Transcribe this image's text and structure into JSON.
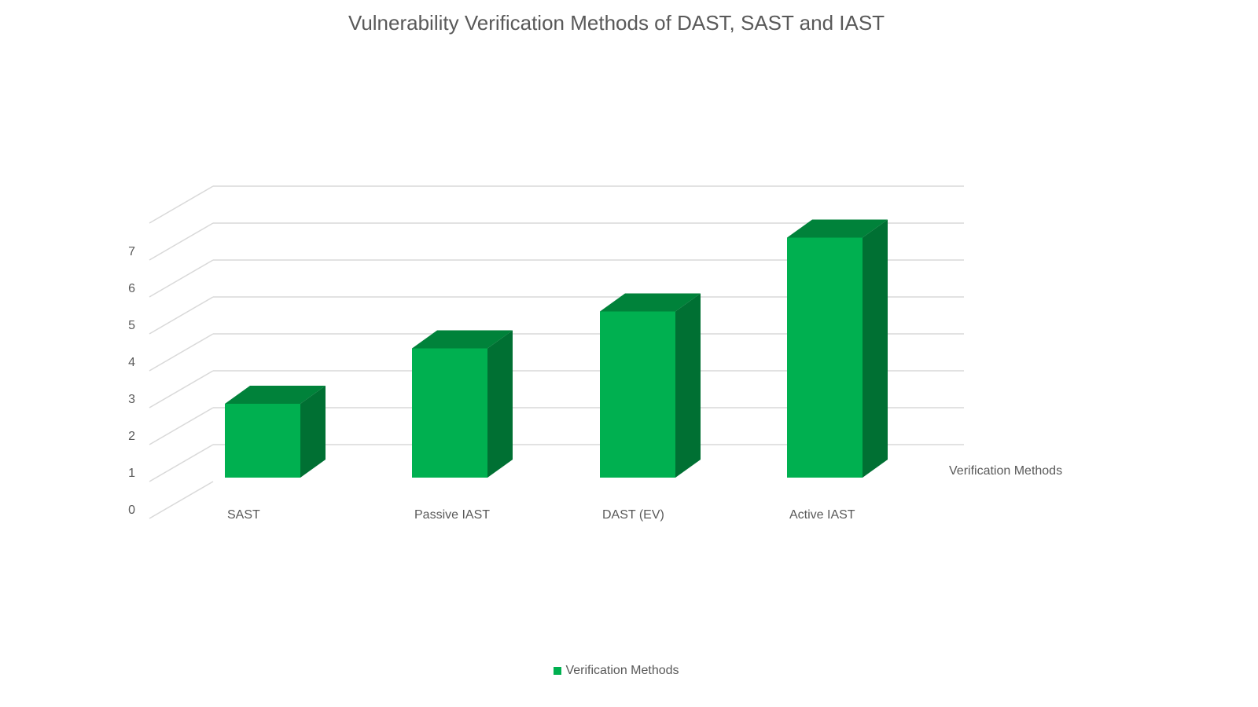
{
  "chart_data": {
    "type": "bar",
    "subtype": "3d-column",
    "title": "Vulnerability Verification Methods of DAST, SAST and IAST",
    "categories": [
      "SAST",
      "Passive IAST",
      "DAST (EV)",
      "Active IAST"
    ],
    "series": [
      {
        "name": "Verification Methods",
        "values": [
          2,
          3.5,
          4.5,
          6.5
        ],
        "color": "#00B050"
      }
    ],
    "xlabel": "",
    "ylabel": "",
    "depth_axis_label": "Verification Methods",
    "yticks": [
      0,
      1,
      2,
      3,
      4,
      5,
      6,
      7
    ],
    "ylim": [
      0,
      8
    ],
    "grid": true,
    "legend_position": "bottom"
  },
  "colors": {
    "front": "#00B050",
    "top": "#00823A",
    "side": "#007033",
    "grid": "#D9D9D9",
    "text": "#595959"
  },
  "legend": {
    "label": "Verification Methods"
  }
}
